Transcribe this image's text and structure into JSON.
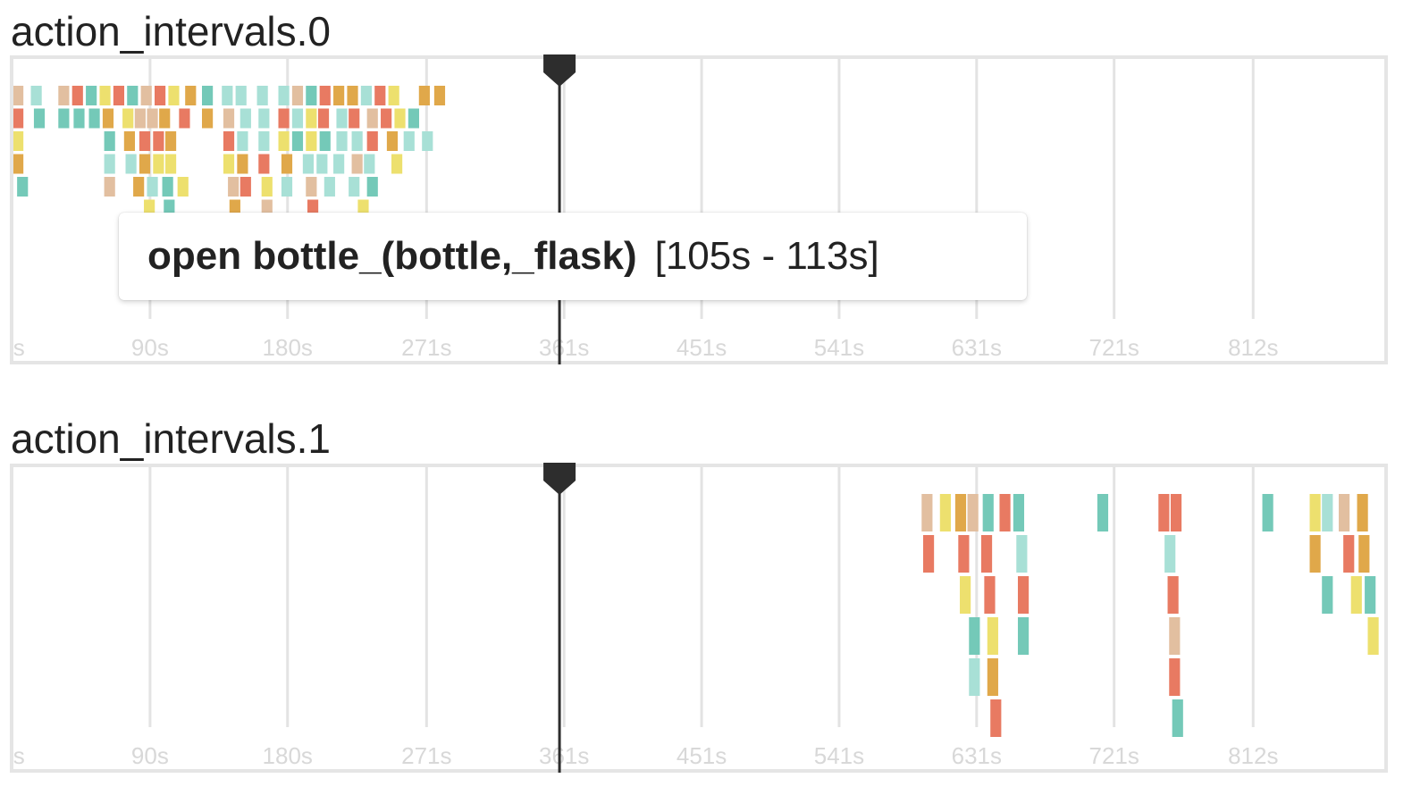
{
  "tooltip": {
    "label": "open bottle_(bottle,_flask)",
    "range": "[105s - 113s]"
  },
  "colors": {
    "border": "#e5e5e5",
    "grid": "#e3e3e3",
    "tick_label": "#d8d8d8",
    "playhead": "#2d2d2d",
    "palette": [
      "#e2bfa0",
      "#a8e0d6",
      "#e87a62",
      "#ede06e",
      "#74c9b8",
      "#e0a84a"
    ]
  },
  "chart_data": [
    {
      "type": "timeline",
      "title": "action_intervals.0",
      "xlim": [
        0,
        900
      ],
      "xticks": [
        0,
        90,
        180,
        271,
        361,
        451,
        541,
        631,
        721,
        812
      ],
      "xtick_labels": [
        "0s",
        "90s",
        "180s",
        "271s",
        "361s",
        "451s",
        "541s",
        "631s",
        "721s",
        "812s"
      ],
      "playhead": 358,
      "intervals": [
        {
          "start": 0,
          "end": 8,
          "lane": 0,
          "color": 0
        },
        {
          "start": 12,
          "end": 20,
          "lane": 0,
          "color": 1
        },
        {
          "start": 30,
          "end": 38,
          "lane": 0,
          "color": 0
        },
        {
          "start": 39,
          "end": 47,
          "lane": 0,
          "color": 2
        },
        {
          "start": 48,
          "end": 56,
          "lane": 0,
          "color": 4
        },
        {
          "start": 57,
          "end": 65,
          "lane": 0,
          "color": 3
        },
        {
          "start": 66,
          "end": 74,
          "lane": 0,
          "color": 2
        },
        {
          "start": 75,
          "end": 83,
          "lane": 0,
          "color": 4
        },
        {
          "start": 84,
          "end": 92,
          "lane": 0,
          "color": 0
        },
        {
          "start": 93,
          "end": 101,
          "lane": 0,
          "color": 2
        },
        {
          "start": 102,
          "end": 110,
          "lane": 0,
          "color": 3
        },
        {
          "start": 113,
          "end": 121,
          "lane": 0,
          "color": 5
        },
        {
          "start": 124,
          "end": 132,
          "lane": 0,
          "color": 4
        },
        {
          "start": 137,
          "end": 145,
          "lane": 0,
          "color": 1
        },
        {
          "start": 146,
          "end": 154,
          "lane": 0,
          "color": 1
        },
        {
          "start": 160,
          "end": 168,
          "lane": 0,
          "color": 1
        },
        {
          "start": 174,
          "end": 182,
          "lane": 0,
          "color": 1
        },
        {
          "start": 183,
          "end": 191,
          "lane": 0,
          "color": 0
        },
        {
          "start": 192,
          "end": 200,
          "lane": 0,
          "color": 4
        },
        {
          "start": 201,
          "end": 209,
          "lane": 0,
          "color": 2
        },
        {
          "start": 210,
          "end": 218,
          "lane": 0,
          "color": 5
        },
        {
          "start": 219,
          "end": 227,
          "lane": 0,
          "color": 5
        },
        {
          "start": 228,
          "end": 236,
          "lane": 0,
          "color": 1
        },
        {
          "start": 237,
          "end": 245,
          "lane": 0,
          "color": 2
        },
        {
          "start": 246,
          "end": 254,
          "lane": 0,
          "color": 3
        },
        {
          "start": 266,
          "end": 274,
          "lane": 0,
          "color": 5
        },
        {
          "start": 276,
          "end": 284,
          "lane": 0,
          "color": 5
        },
        {
          "start": 0,
          "end": 8,
          "lane": 1,
          "color": 2
        },
        {
          "start": 14,
          "end": 22,
          "lane": 1,
          "color": 4
        },
        {
          "start": 30,
          "end": 38,
          "lane": 1,
          "color": 4
        },
        {
          "start": 40,
          "end": 48,
          "lane": 1,
          "color": 4
        },
        {
          "start": 50,
          "end": 58,
          "lane": 1,
          "color": 4
        },
        {
          "start": 59,
          "end": 67,
          "lane": 1,
          "color": 5
        },
        {
          "start": 72,
          "end": 80,
          "lane": 1,
          "color": 3
        },
        {
          "start": 80,
          "end": 88,
          "lane": 1,
          "color": 0
        },
        {
          "start": 88,
          "end": 96,
          "lane": 1,
          "color": 0
        },
        {
          "start": 96,
          "end": 104,
          "lane": 1,
          "color": 5
        },
        {
          "start": 109,
          "end": 117,
          "lane": 1,
          "color": 2
        },
        {
          "start": 124,
          "end": 132,
          "lane": 1,
          "color": 5
        },
        {
          "start": 138,
          "end": 146,
          "lane": 1,
          "color": 0
        },
        {
          "start": 149,
          "end": 157,
          "lane": 1,
          "color": 1
        },
        {
          "start": 161,
          "end": 169,
          "lane": 1,
          "color": 1
        },
        {
          "start": 174,
          "end": 182,
          "lane": 1,
          "color": 2
        },
        {
          "start": 183,
          "end": 191,
          "lane": 1,
          "color": 1
        },
        {
          "start": 192,
          "end": 200,
          "lane": 1,
          "color": 3
        },
        {
          "start": 200,
          "end": 208,
          "lane": 1,
          "color": 2
        },
        {
          "start": 212,
          "end": 220,
          "lane": 1,
          "color": 1
        },
        {
          "start": 220,
          "end": 228,
          "lane": 1,
          "color": 2
        },
        {
          "start": 232,
          "end": 240,
          "lane": 1,
          "color": 0
        },
        {
          "start": 241,
          "end": 249,
          "lane": 1,
          "color": 2
        },
        {
          "start": 250,
          "end": 258,
          "lane": 1,
          "color": 3
        },
        {
          "start": 259,
          "end": 267,
          "lane": 1,
          "color": 4
        },
        {
          "start": 0,
          "end": 8,
          "lane": 2,
          "color": 3
        },
        {
          "start": 60,
          "end": 68,
          "lane": 2,
          "color": 4
        },
        {
          "start": 73,
          "end": 81,
          "lane": 2,
          "color": 5
        },
        {
          "start": 83,
          "end": 91,
          "lane": 2,
          "color": 2
        },
        {
          "start": 92,
          "end": 100,
          "lane": 2,
          "color": 2
        },
        {
          "start": 100,
          "end": 108,
          "lane": 2,
          "color": 5
        },
        {
          "start": 138,
          "end": 146,
          "lane": 2,
          "color": 2
        },
        {
          "start": 147,
          "end": 155,
          "lane": 2,
          "color": 1
        },
        {
          "start": 161,
          "end": 169,
          "lane": 2,
          "color": 1
        },
        {
          "start": 174,
          "end": 182,
          "lane": 2,
          "color": 3
        },
        {
          "start": 183,
          "end": 191,
          "lane": 2,
          "color": 4
        },
        {
          "start": 192,
          "end": 200,
          "lane": 2,
          "color": 3
        },
        {
          "start": 201,
          "end": 209,
          "lane": 2,
          "color": 4
        },
        {
          "start": 212,
          "end": 220,
          "lane": 2,
          "color": 1
        },
        {
          "start": 222,
          "end": 230,
          "lane": 2,
          "color": 1
        },
        {
          "start": 232,
          "end": 240,
          "lane": 2,
          "color": 2
        },
        {
          "start": 245,
          "end": 253,
          "lane": 2,
          "color": 5
        },
        {
          "start": 256,
          "end": 264,
          "lane": 2,
          "color": 1
        },
        {
          "start": 268,
          "end": 276,
          "lane": 2,
          "color": 1
        },
        {
          "start": 0,
          "end": 8,
          "lane": 3,
          "color": 5
        },
        {
          "start": 60,
          "end": 68,
          "lane": 3,
          "color": 1
        },
        {
          "start": 74,
          "end": 82,
          "lane": 3,
          "color": 1
        },
        {
          "start": 83,
          "end": 91,
          "lane": 3,
          "color": 5
        },
        {
          "start": 92,
          "end": 100,
          "lane": 3,
          "color": 3
        },
        {
          "start": 100,
          "end": 108,
          "lane": 3,
          "color": 3
        },
        {
          "start": 138,
          "end": 146,
          "lane": 3,
          "color": 3
        },
        {
          "start": 147,
          "end": 155,
          "lane": 3,
          "color": 5
        },
        {
          "start": 161,
          "end": 169,
          "lane": 3,
          "color": 2
        },
        {
          "start": 176,
          "end": 184,
          "lane": 3,
          "color": 5
        },
        {
          "start": 190,
          "end": 198,
          "lane": 3,
          "color": 1
        },
        {
          "start": 199,
          "end": 207,
          "lane": 3,
          "color": 1
        },
        {
          "start": 210,
          "end": 218,
          "lane": 3,
          "color": 1
        },
        {
          "start": 222,
          "end": 230,
          "lane": 3,
          "color": 0
        },
        {
          "start": 230,
          "end": 238,
          "lane": 3,
          "color": 1
        },
        {
          "start": 248,
          "end": 256,
          "lane": 3,
          "color": 3
        },
        {
          "start": 3,
          "end": 11,
          "lane": 4,
          "color": 4
        },
        {
          "start": 60,
          "end": 68,
          "lane": 4,
          "color": 0
        },
        {
          "start": 79,
          "end": 87,
          "lane": 4,
          "color": 5
        },
        {
          "start": 88,
          "end": 96,
          "lane": 4,
          "color": 1
        },
        {
          "start": 98,
          "end": 106,
          "lane": 4,
          "color": 4
        },
        {
          "start": 108,
          "end": 116,
          "lane": 4,
          "color": 3
        },
        {
          "start": 141,
          "end": 149,
          "lane": 4,
          "color": 0
        },
        {
          "start": 149,
          "end": 157,
          "lane": 4,
          "color": 2
        },
        {
          "start": 163,
          "end": 171,
          "lane": 4,
          "color": 3
        },
        {
          "start": 176,
          "end": 184,
          "lane": 4,
          "color": 1
        },
        {
          "start": 192,
          "end": 200,
          "lane": 4,
          "color": 0
        },
        {
          "start": 204,
          "end": 212,
          "lane": 4,
          "color": 1
        },
        {
          "start": 220,
          "end": 228,
          "lane": 4,
          "color": 1
        },
        {
          "start": 232,
          "end": 240,
          "lane": 4,
          "color": 4
        },
        {
          "start": 86,
          "end": 94,
          "lane": 5,
          "color": 3
        },
        {
          "start": 99,
          "end": 107,
          "lane": 5,
          "color": 4
        },
        {
          "start": 142,
          "end": 150,
          "lane": 5,
          "color": 5
        },
        {
          "start": 163,
          "end": 171,
          "lane": 5,
          "color": 0
        },
        {
          "start": 193,
          "end": 201,
          "lane": 5,
          "color": 2
        },
        {
          "start": 226,
          "end": 234,
          "lane": 5,
          "color": 3
        },
        {
          "start": 105,
          "end": 113,
          "lane": 6,
          "color": 1
        },
        {
          "start": 105,
          "end": 113,
          "lane": 7,
          "color": 0
        }
      ]
    },
    {
      "type": "timeline",
      "title": "action_intervals.1",
      "xlim": [
        0,
        900
      ],
      "xticks": [
        0,
        90,
        180,
        271,
        361,
        451,
        541,
        631,
        721,
        812
      ],
      "xtick_labels": [
        "0s",
        "90s",
        "180s",
        "271s",
        "361s",
        "451s",
        "541s",
        "631s",
        "721s",
        "812s"
      ],
      "playhead": 358,
      "intervals": [
        {
          "start": 595,
          "end": 603,
          "lane": 0,
          "color": 0
        },
        {
          "start": 607,
          "end": 615,
          "lane": 0,
          "color": 3
        },
        {
          "start": 617,
          "end": 625,
          "lane": 0,
          "color": 5
        },
        {
          "start": 625,
          "end": 633,
          "lane": 0,
          "color": 0
        },
        {
          "start": 635,
          "end": 643,
          "lane": 0,
          "color": 4
        },
        {
          "start": 646,
          "end": 654,
          "lane": 0,
          "color": 2
        },
        {
          "start": 655,
          "end": 663,
          "lane": 0,
          "color": 4
        },
        {
          "start": 710,
          "end": 718,
          "lane": 0,
          "color": 4
        },
        {
          "start": 750,
          "end": 758,
          "lane": 0,
          "color": 2
        },
        {
          "start": 758,
          "end": 766,
          "lane": 0,
          "color": 2
        },
        {
          "start": 818,
          "end": 826,
          "lane": 0,
          "color": 4
        },
        {
          "start": 849,
          "end": 857,
          "lane": 0,
          "color": 3
        },
        {
          "start": 857,
          "end": 865,
          "lane": 0,
          "color": 1
        },
        {
          "start": 868,
          "end": 876,
          "lane": 0,
          "color": 0
        },
        {
          "start": 880,
          "end": 888,
          "lane": 0,
          "color": 5
        },
        {
          "start": 596,
          "end": 604,
          "lane": 1,
          "color": 2
        },
        {
          "start": 619,
          "end": 627,
          "lane": 1,
          "color": 2
        },
        {
          "start": 634,
          "end": 642,
          "lane": 1,
          "color": 2
        },
        {
          "start": 657,
          "end": 665,
          "lane": 1,
          "color": 1
        },
        {
          "start": 754,
          "end": 762,
          "lane": 1,
          "color": 1
        },
        {
          "start": 849,
          "end": 857,
          "lane": 1,
          "color": 5
        },
        {
          "start": 871,
          "end": 879,
          "lane": 1,
          "color": 2
        },
        {
          "start": 881,
          "end": 889,
          "lane": 1,
          "color": 5
        },
        {
          "start": 620,
          "end": 628,
          "lane": 2,
          "color": 3
        },
        {
          "start": 636,
          "end": 644,
          "lane": 2,
          "color": 2
        },
        {
          "start": 658,
          "end": 666,
          "lane": 2,
          "color": 2
        },
        {
          "start": 756,
          "end": 764,
          "lane": 2,
          "color": 2
        },
        {
          "start": 857,
          "end": 865,
          "lane": 2,
          "color": 4
        },
        {
          "start": 876,
          "end": 884,
          "lane": 2,
          "color": 3
        },
        {
          "start": 885,
          "end": 893,
          "lane": 2,
          "color": 4
        },
        {
          "start": 626,
          "end": 634,
          "lane": 3,
          "color": 4
        },
        {
          "start": 638,
          "end": 646,
          "lane": 3,
          "color": 3
        },
        {
          "start": 658,
          "end": 666,
          "lane": 3,
          "color": 4
        },
        {
          "start": 757,
          "end": 765,
          "lane": 3,
          "color": 0
        },
        {
          "start": 887,
          "end": 895,
          "lane": 3,
          "color": 3
        },
        {
          "start": 626,
          "end": 634,
          "lane": 4,
          "color": 1
        },
        {
          "start": 638,
          "end": 646,
          "lane": 4,
          "color": 5
        },
        {
          "start": 757,
          "end": 765,
          "lane": 4,
          "color": 2
        },
        {
          "start": 640,
          "end": 648,
          "lane": 5,
          "color": 2
        },
        {
          "start": 759,
          "end": 767,
          "lane": 5,
          "color": 4
        }
      ]
    }
  ]
}
